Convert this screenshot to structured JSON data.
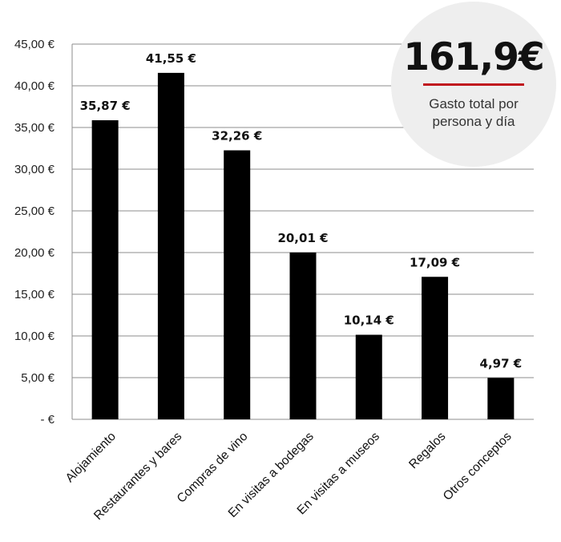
{
  "chart_data": {
    "type": "bar",
    "categories": [
      "Alojamiento",
      "Restaurantes y bares",
      "Compras de vino",
      "En visitas a bodegas",
      "En visitas a museos",
      "Regalos",
      "Otros conceptos"
    ],
    "values": [
      35.87,
      41.55,
      32.26,
      20.01,
      10.14,
      17.09,
      4.97
    ],
    "data_labels": [
      "35,87 €",
      "41,55 €",
      "32,26 €",
      "20,01 €",
      "10,14 €",
      "17,09 €",
      "4,97 €"
    ],
    "y_ticks": [
      "-   €",
      "5,00 €",
      "10,00 €",
      "15,00 €",
      "20,00 €",
      "25,00 €",
      "30,00 €",
      "35,00 €",
      "40,00 €",
      "45,00 €"
    ],
    "ylim": [
      0,
      45
    ],
    "grid": true,
    "bar_color": "#000000",
    "grid_color": "#8c8c8c",
    "title": "",
    "xlabel": "",
    "ylabel": ""
  },
  "badge": {
    "total": "161,9€",
    "caption": "Gasto total por persona y día",
    "accent_color": "#c0161e"
  }
}
